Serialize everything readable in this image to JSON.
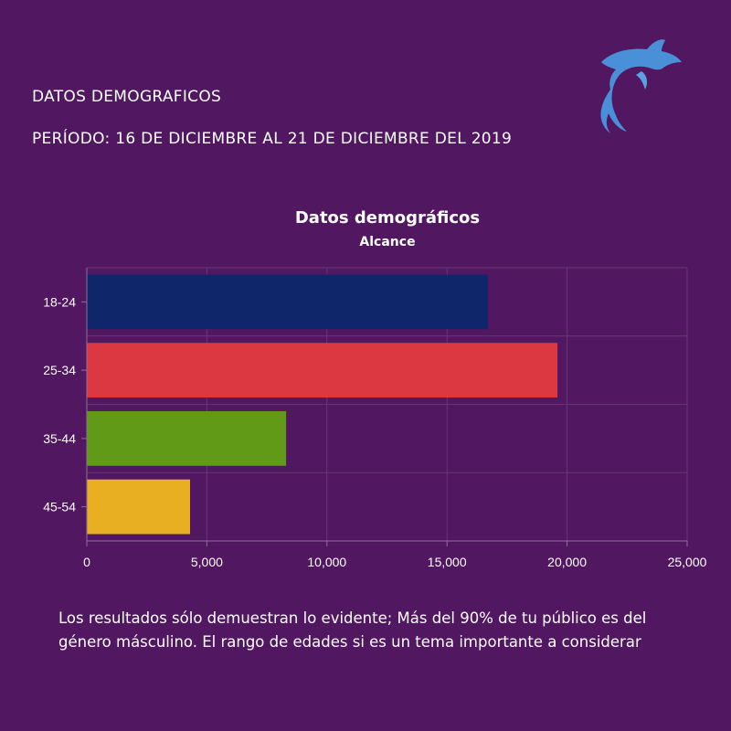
{
  "header": {
    "title": "DATOS DEMOGRAFICOS",
    "period": "PERÍODO: 16 DE DICIEMBRE AL 21 DE DICIEMBRE DEL 2019"
  },
  "logo": {
    "icon": "dolphin-icon",
    "color": "#4a90d9"
  },
  "chart_data": {
    "type": "bar",
    "orientation": "horizontal",
    "title": "Datos demográficos",
    "subtitle": "Alcance",
    "categories": [
      "18-24",
      "25-34",
      "35-44",
      "45-54"
    ],
    "values": [
      16700,
      19600,
      8300,
      4300
    ],
    "colors": [
      "#10266b",
      "#db3841",
      "#619a16",
      "#e8af23"
    ],
    "xlim": [
      0,
      25000
    ],
    "xticks": [
      "0",
      "5,000",
      "10,000",
      "15,000",
      "20,000",
      "25,000"
    ],
    "grid": true
  },
  "footer": {
    "text": "Los resultados sólo demuestran lo evidente; Más del 90% de tu público es del género másculino. El rango de edades si es un tema importante a considerar"
  }
}
